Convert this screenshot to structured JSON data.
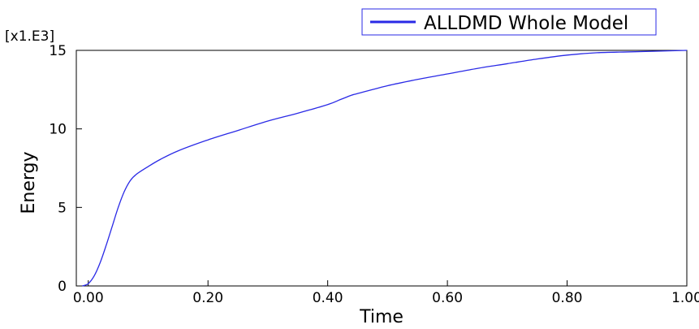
{
  "chart_data": {
    "type": "line",
    "xlabel": "Time",
    "ylabel": "Energy",
    "y_scale_label": "[x1.E3]",
    "xlim": [
      -0.02,
      1.0
    ],
    "ylim": [
      0,
      15
    ],
    "x_ticks": [
      0.0,
      0.2,
      0.4,
      0.6,
      0.8,
      1.0
    ],
    "x_tick_labels": [
      "0.00",
      "0.20",
      "0.40",
      "0.60",
      "0.80",
      "1.00"
    ],
    "y_ticks": [
      0,
      5,
      10,
      15
    ],
    "y_tick_labels": [
      "0",
      "5",
      "10",
      "15"
    ],
    "grid": false,
    "legend_position": "top-right",
    "series": [
      {
        "name": "ALLDMD Whole Model",
        "color": "#2a2ae6",
        "x": [
          -0.01,
          0.0,
          0.01,
          0.02,
          0.03,
          0.04,
          0.05,
          0.06,
          0.07,
          0.08,
          0.1,
          0.12,
          0.15,
          0.2,
          0.25,
          0.3,
          0.35,
          0.4,
          0.42,
          0.43,
          0.44,
          0.45,
          0.5,
          0.55,
          0.6,
          0.65,
          0.7,
          0.75,
          0.8,
          0.85,
          0.9,
          0.95,
          1.0
        ],
        "values": [
          0.0,
          0.15,
          0.65,
          1.5,
          2.6,
          3.8,
          5.0,
          6.0,
          6.7,
          7.1,
          7.6,
          8.05,
          8.6,
          9.3,
          9.9,
          10.5,
          11.0,
          11.55,
          11.85,
          12.0,
          12.15,
          12.25,
          12.75,
          13.15,
          13.5,
          13.85,
          14.15,
          14.45,
          14.7,
          14.85,
          14.9,
          14.95,
          15.0
        ]
      }
    ]
  }
}
